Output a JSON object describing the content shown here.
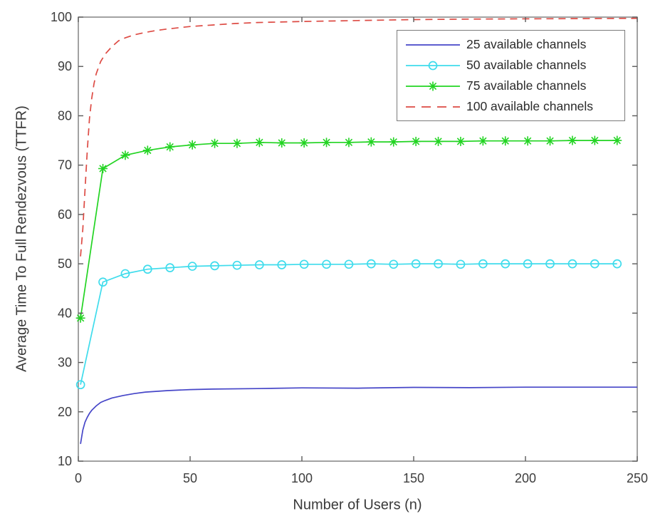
{
  "figure": {
    "background": "#ffffff",
    "axis_color": "#7b7b7b",
    "tick_color": "#5a5a5a",
    "tick_label_color": "#3d3d3d",
    "label_color": "#3a3a3a"
  },
  "chart_data": {
    "type": "line",
    "title": "",
    "xlabel": "Number of Users (n)",
    "ylabel": "Average Time To Full Rendezvous (TTFR)",
    "xlim": [
      0,
      250
    ],
    "ylim": [
      10,
      100
    ],
    "xticks": [
      0,
      50,
      100,
      150,
      200,
      250
    ],
    "yticks": [
      10,
      20,
      30,
      40,
      50,
      60,
      70,
      80,
      90,
      100
    ],
    "grid": false,
    "legend_position": "top-right-inside",
    "series": [
      {
        "name": "25 available channels",
        "color": "#4646c8",
        "style": "solid",
        "marker": "none",
        "x": [
          1,
          2,
          3,
          4,
          5,
          6,
          8,
          10,
          12,
          15,
          20,
          25,
          30,
          40,
          50,
          60,
          80,
          100,
          125,
          150,
          175,
          200,
          225,
          250
        ],
        "y": [
          13.5,
          16.3,
          17.9,
          18.9,
          19.7,
          20.3,
          21.2,
          21.9,
          22.3,
          22.8,
          23.3,
          23.7,
          24.0,
          24.3,
          24.5,
          24.6,
          24.7,
          24.85,
          24.8,
          24.95,
          24.9,
          25.0,
          25.0,
          25.0
        ]
      },
      {
        "name": "50 available channels",
        "color": "#3fdcec",
        "style": "solid",
        "marker": "circle",
        "x": [
          1,
          11,
          21,
          31,
          41,
          51,
          61,
          71,
          81,
          91,
          101,
          111,
          121,
          131,
          141,
          151,
          161,
          171,
          181,
          191,
          201,
          211,
          221,
          231,
          241
        ],
        "y": [
          25.5,
          46.3,
          48.0,
          48.9,
          49.2,
          49.5,
          49.6,
          49.7,
          49.8,
          49.8,
          49.9,
          49.9,
          49.9,
          50.0,
          49.9,
          50.0,
          50.0,
          49.9,
          50.0,
          50.0,
          50.0,
          50.0,
          50.0,
          50.0,
          50.0
        ]
      },
      {
        "name": "75 available channels",
        "color": "#22d422",
        "style": "solid",
        "marker": "asterisk",
        "x": [
          1,
          11,
          21,
          31,
          41,
          51,
          61,
          71,
          81,
          91,
          101,
          111,
          121,
          131,
          141,
          151,
          161,
          171,
          181,
          191,
          201,
          211,
          221,
          231,
          241
        ],
        "y": [
          39.0,
          69.3,
          72.0,
          73.0,
          73.7,
          74.1,
          74.4,
          74.4,
          74.6,
          74.5,
          74.5,
          74.6,
          74.6,
          74.7,
          74.7,
          74.8,
          74.8,
          74.8,
          74.9,
          74.9,
          74.9,
          74.9,
          75.0,
          75.0,
          75.0
        ]
      },
      {
        "name": "100 available channels",
        "color": "#dd4b44",
        "style": "dashed",
        "marker": "none",
        "x": [
          1,
          2,
          3,
          4,
          5,
          6,
          7,
          8,
          10,
          12,
          15,
          18,
          21,
          25,
          30,
          35,
          40,
          50,
          60,
          70,
          80,
          90,
          100,
          125,
          150,
          175,
          200,
          225,
          250
        ],
        "y": [
          51.5,
          57.0,
          65.0,
          73.0,
          79.5,
          83.5,
          86.5,
          88.5,
          91.0,
          92.5,
          94.0,
          95.2,
          95.8,
          96.4,
          96.9,
          97.3,
          97.6,
          98.1,
          98.4,
          98.7,
          98.9,
          99.0,
          99.1,
          99.3,
          99.5,
          99.6,
          99.65,
          99.7,
          99.75
        ]
      }
    ]
  }
}
